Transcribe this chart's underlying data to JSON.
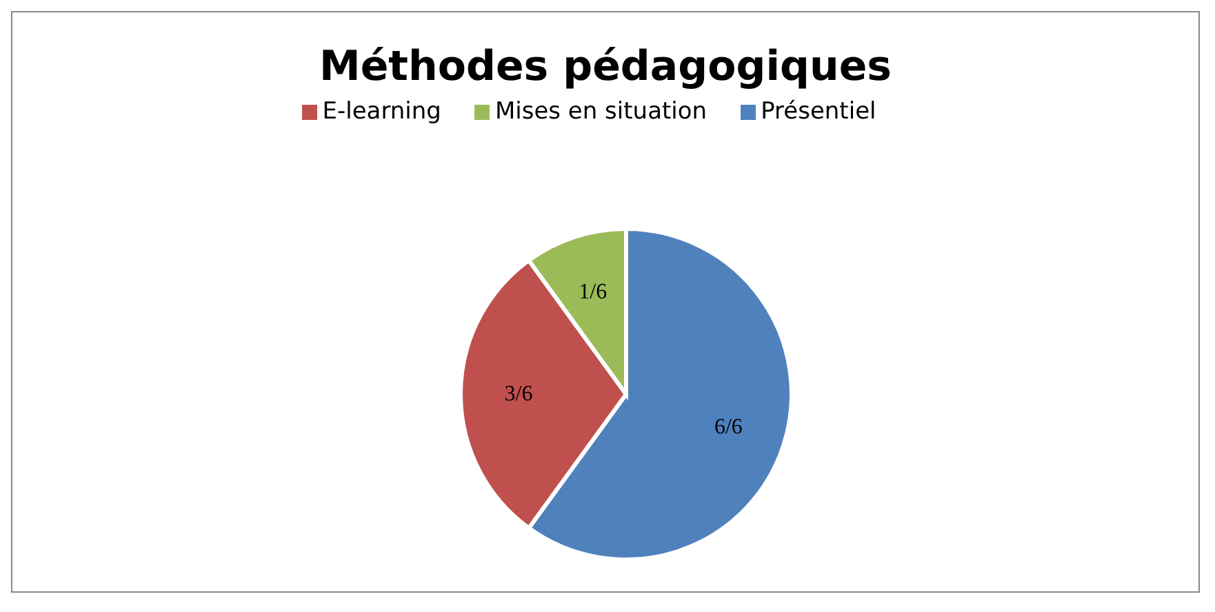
{
  "chart_data": {
    "type": "pie",
    "title": "Méthodes pédagogiques",
    "categories": [
      "Présentiel",
      "E-learning",
      "Mises en situation"
    ],
    "values": [
      1,
      0.5,
      0.1667
    ],
    "value_labels": [
      "6/6",
      "3/6",
      "1/6"
    ],
    "colors": [
      "#4f81bd",
      "#c0504d",
      "#9bbb59"
    ],
    "legend": "top"
  }
}
